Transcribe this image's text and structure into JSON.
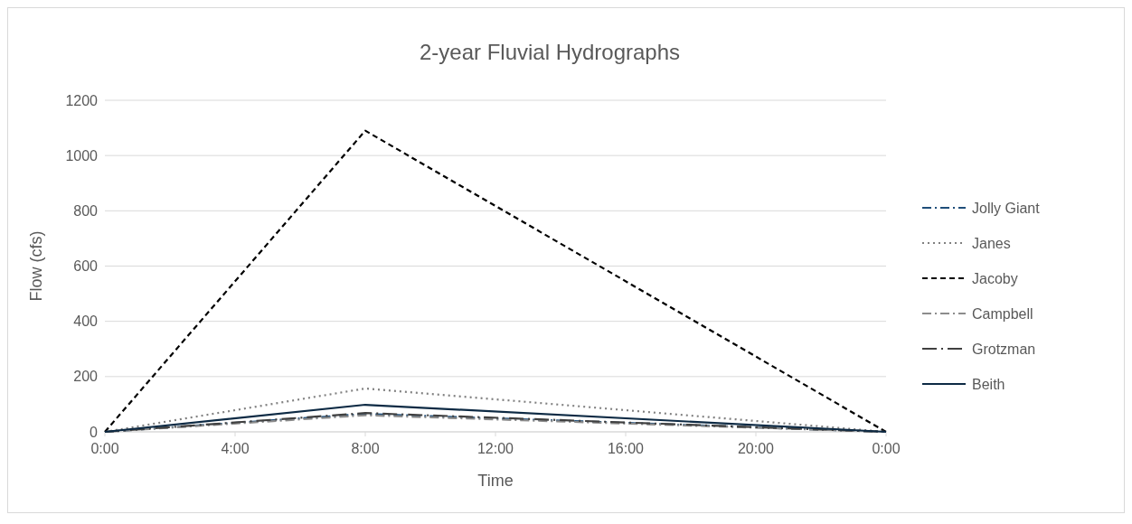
{
  "chart_data": {
    "type": "line",
    "title": "2-year Fluvial Hydrographs",
    "xlabel": "Time",
    "ylabel": "Flow (cfs)",
    "x": [
      0,
      8,
      24
    ],
    "xlim": [
      0,
      24
    ],
    "xticks": [
      {
        "value": 0,
        "label": "0:00"
      },
      {
        "value": 4,
        "label": "4:00"
      },
      {
        "value": 8,
        "label": "8:00"
      },
      {
        "value": 12,
        "label": "12:00"
      },
      {
        "value": 16,
        "label": "16:00"
      },
      {
        "value": 20,
        "label": "20:00"
      },
      {
        "value": 24,
        "label": "0:00"
      }
    ],
    "ylim": [
      0,
      1200
    ],
    "yticks": [
      0,
      200,
      400,
      600,
      800,
      1000,
      1200
    ],
    "grid": "y",
    "legend": "right",
    "marker": "none",
    "series": [
      {
        "name": "Jolly Giant",
        "color": "#1f4e79",
        "line_style": "dashdot",
        "values": [
          0,
          65,
          0
        ]
      },
      {
        "name": "Janes",
        "color": "#808080",
        "line_style": "dotted",
        "values": [
          0,
          157,
          0
        ]
      },
      {
        "name": "Jacoby",
        "color": "#000000",
        "line_style": "dashed",
        "values": [
          0,
          1090,
          0
        ]
      },
      {
        "name": "Campbell",
        "color": "#8c8c8c",
        "line_style": "dashdot",
        "values": [
          0,
          60,
          0
        ]
      },
      {
        "name": "Grotzman",
        "color": "#404040",
        "line_style": "longdashdot",
        "values": [
          0,
          68,
          0
        ]
      },
      {
        "name": "Beith",
        "color": "#0d2a44",
        "line_style": "solid",
        "values": [
          0,
          98,
          0
        ]
      }
    ]
  }
}
